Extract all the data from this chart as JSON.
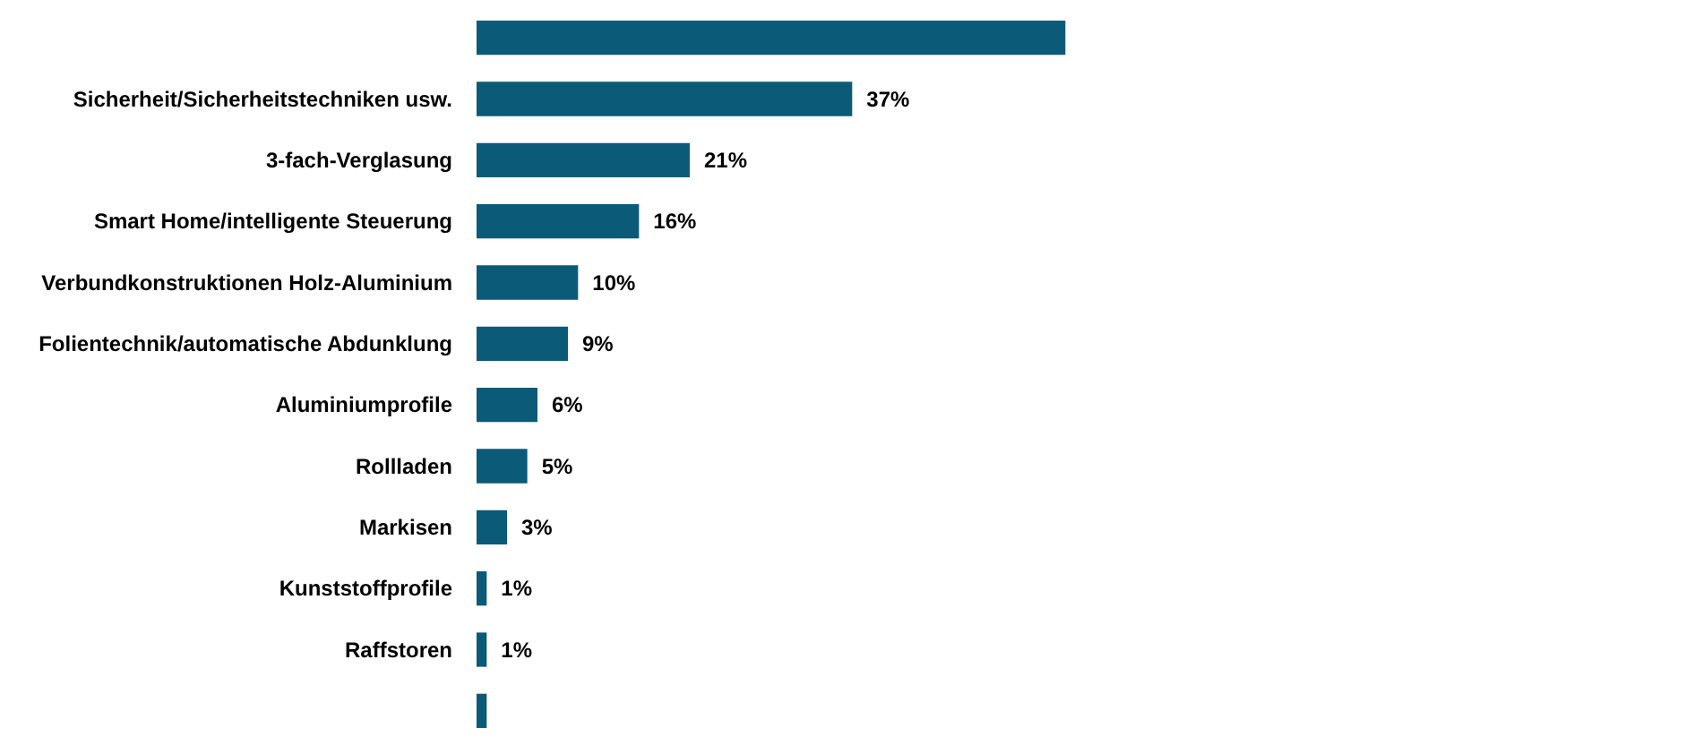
{
  "chart_data": {
    "type": "bar",
    "orientation": "horizontal",
    "categories": [
      null,
      "Sicherheit/Sicherheitstechniken usw.",
      "3-fach-Verglasung",
      "Smart Home/intelligente Steuerung",
      "Verbundkonstruktionen Holz-Aluminium",
      "Folientechnik/automatische Abdunklung",
      "Aluminiumprofile",
      "Rollladen",
      "Markisen",
      "Kunststoffprofile",
      "Raffstoren",
      null
    ],
    "values": [
      58,
      37,
      21,
      16,
      10,
      9,
      6,
      5,
      3,
      1,
      1,
      1
    ],
    "value_labels": [
      null,
      "37%",
      "21%",
      "16%",
      "10%",
      "9%",
      "6%",
      "5%",
      "3%",
      "1%",
      "1%",
      null
    ],
    "color": "#0b5a78",
    "grid": false
  }
}
